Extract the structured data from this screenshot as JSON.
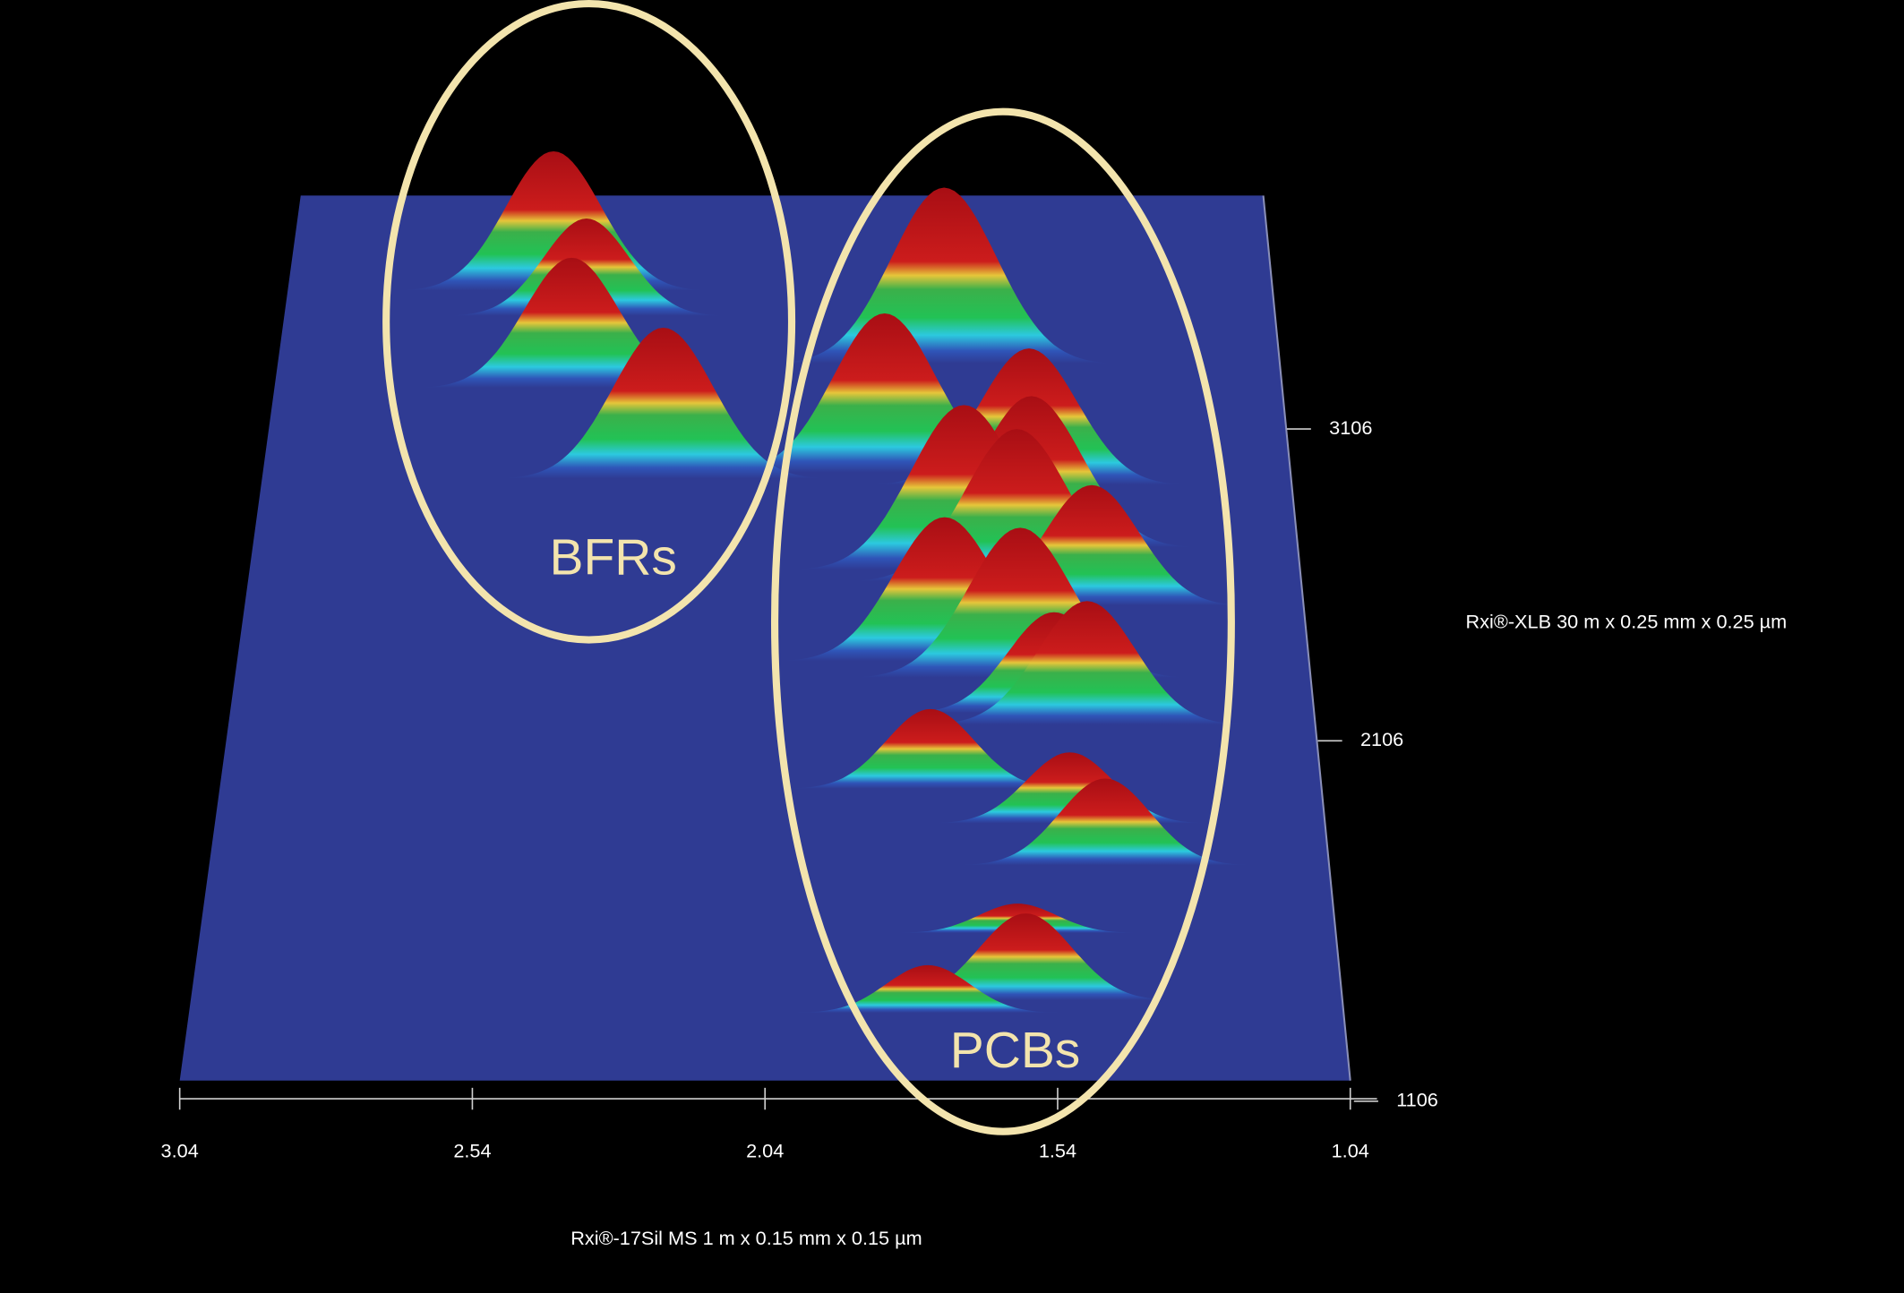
{
  "chart_data": {
    "type": "surface3d",
    "x_label": "Rxi®-17Sil MS 1 m x 0.15 mm x 0.15 µm",
    "y_label": "Rxi®-XLB 30 m x 0.25 mm x 0.25 µm",
    "xlim": [
      3.04,
      1.04
    ],
    "ylim": [
      1106,
      3876
    ],
    "xticks": [
      3.04,
      2.54,
      2.04,
      1.54,
      1.04
    ],
    "yticks": [
      1106,
      2106,
      3106
    ],
    "plane_color": "#2f3b93",
    "annotation_color": "#f3e4ad",
    "annotations": [
      "BFRs",
      "PCBs"
    ],
    "peaks": {
      "x": [
        2.5,
        2.43,
        1.71,
        2.45,
        1.83,
        2.26,
        1.55,
        1.55,
        1.68,
        1.58,
        1.44,
        1.72,
        1.58,
        1.52,
        1.46,
        1.75,
        1.5,
        1.44,
        1.6,
        1.59,
        1.76
      ],
      "y": [
        3520,
        3430,
        3259,
        3175,
        2886,
        2866,
        2846,
        2641,
        2568,
        2532,
        2456,
        2283,
        2232,
        2126,
        2091,
        1903,
        1803,
        1684,
        1497,
        1315,
        1282
      ],
      "z": [
        137,
        95,
        170,
        125,
        150,
        142,
        128,
        140,
        152,
        140,
        110,
        130,
        135,
        90,
        110,
        70,
        62,
        75,
        25,
        73,
        40
      ]
    }
  }
}
